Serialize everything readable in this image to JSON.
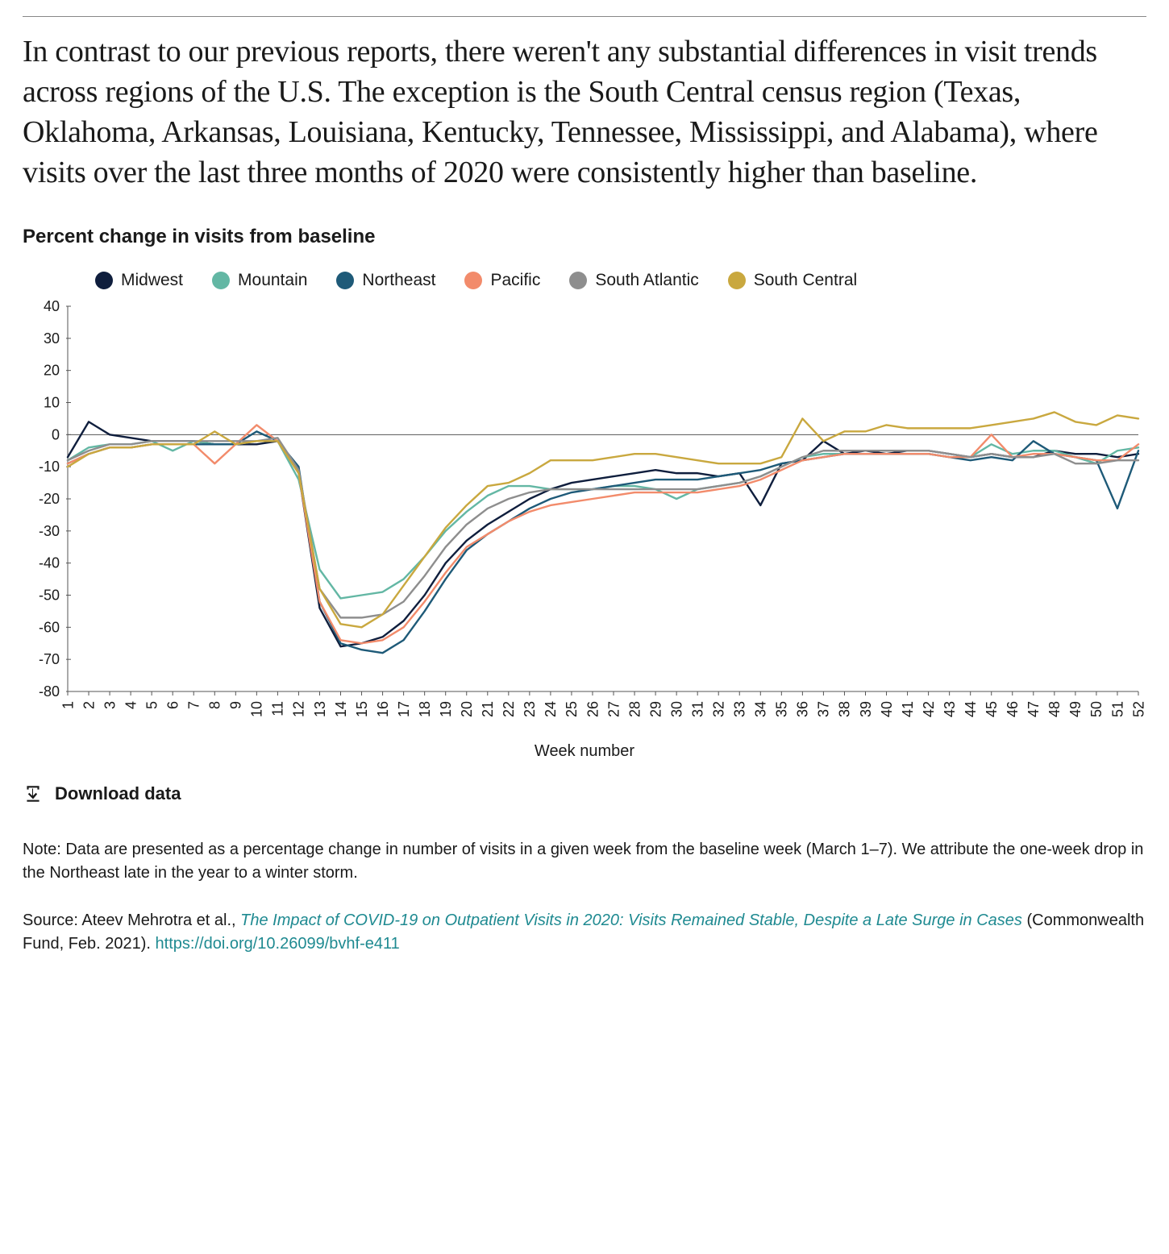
{
  "intro_text": "In contrast to our previous reports, there weren't any substantial differences in visit trends across regions of the U.S. The exception is the South Central census region (Texas, Oklahoma, Arkansas, Louisiana, Kentucky, Tennessee, Mississippi, and Alabama), where visits over the last three months of 2020 were consistently higher than baseline.",
  "chart": {
    "title": "Percent change in visits from baseline",
    "type": "line",
    "xlabel": "Week number",
    "x_values": [
      1,
      2,
      3,
      4,
      5,
      6,
      7,
      8,
      9,
      10,
      11,
      12,
      13,
      14,
      15,
      16,
      17,
      18,
      19,
      20,
      21,
      22,
      23,
      24,
      25,
      26,
      27,
      28,
      29,
      30,
      31,
      32,
      33,
      34,
      35,
      36,
      37,
      38,
      39,
      40,
      41,
      42,
      43,
      44,
      45,
      46,
      47,
      48,
      49,
      50,
      51,
      52
    ],
    "ylim": [
      -80,
      40
    ],
    "ytick_step": 10,
    "line_width": 2.4,
    "background_color": "#ffffff",
    "axis_color": "#555555",
    "tick_font_size": 18,
    "legend_font_size": 21,
    "series": [
      {
        "name": "Midwest",
        "color": "#0f1e3d",
        "values": [
          -7,
          4,
          0,
          -1,
          -2,
          -2,
          -2,
          -3,
          -3,
          -3,
          -2,
          -12,
          -54,
          -66,
          -65,
          -63,
          -58,
          -50,
          -40,
          -33,
          -28,
          -24,
          -20,
          -17,
          -15,
          -14,
          -13,
          -12,
          -11,
          -12,
          -12,
          -13,
          -12,
          -22,
          -9,
          -8,
          -2,
          -6,
          -5,
          -6,
          -5,
          -5,
          -6,
          -7,
          -6,
          -7,
          -7,
          -5,
          -6,
          -6,
          -7,
          -6
        ]
      },
      {
        "name": "Mountain",
        "color": "#63b7a4",
        "values": [
          -8,
          -4,
          -3,
          -3,
          -2,
          -5,
          -2,
          -3,
          -3,
          -2,
          -2,
          -14,
          -42,
          -51,
          -50,
          -49,
          -45,
          -38,
          -30,
          -24,
          -19,
          -16,
          -16,
          -17,
          -17,
          -17,
          -16,
          -16,
          -17,
          -20,
          -17,
          -16,
          -15,
          -13,
          -10,
          -7,
          -6,
          -6,
          -6,
          -6,
          -6,
          -6,
          -7,
          -7,
          -3,
          -6,
          -5,
          -5,
          -7,
          -9,
          -5,
          -4
        ]
      },
      {
        "name": "Northeast",
        "color": "#1e5a78",
        "values": [
          -9,
          -6,
          -4,
          -4,
          -3,
          -3,
          -3,
          -3,
          -3,
          1,
          -2,
          -10,
          -52,
          -65,
          -67,
          -68,
          -64,
          -55,
          -45,
          -36,
          -31,
          -27,
          -23,
          -20,
          -18,
          -17,
          -16,
          -15,
          -14,
          -14,
          -14,
          -13,
          -12,
          -11,
          -9,
          -8,
          -7,
          -6,
          -6,
          -6,
          -6,
          -6,
          -7,
          -8,
          -7,
          -8,
          -2,
          -6,
          -7,
          -8,
          -23,
          -5
        ]
      },
      {
        "name": "Pacific",
        "color": "#f28b6b",
        "values": [
          -9,
          -6,
          -4,
          -4,
          -3,
          -3,
          -3,
          -9,
          -3,
          3,
          -2,
          -12,
          -52,
          -64,
          -65,
          -64,
          -60,
          -52,
          -43,
          -35,
          -31,
          -27,
          -24,
          -22,
          -21,
          -20,
          -19,
          -18,
          -18,
          -18,
          -18,
          -17,
          -16,
          -14,
          -11,
          -8,
          -7,
          -6,
          -6,
          -6,
          -6,
          -6,
          -7,
          -7,
          0,
          -7,
          -6,
          -6,
          -7,
          -8,
          -8,
          -3
        ]
      },
      {
        "name": "South Atlantic",
        "color": "#8e8e8e",
        "values": [
          -8,
          -5,
          -3,
          -3,
          -2,
          -2,
          -2,
          -2,
          -2,
          -2,
          -1,
          -11,
          -48,
          -57,
          -57,
          -56,
          -52,
          -44,
          -35,
          -28,
          -23,
          -20,
          -18,
          -17,
          -17,
          -17,
          -17,
          -17,
          -17,
          -17,
          -17,
          -16,
          -15,
          -13,
          -10,
          -7,
          -5,
          -5,
          -5,
          -5,
          -5,
          -5,
          -6,
          -7,
          -6,
          -7,
          -7,
          -6,
          -9,
          -9,
          -8,
          -8
        ]
      },
      {
        "name": "South Central",
        "color": "#c9a83f",
        "values": [
          -10,
          -6,
          -4,
          -4,
          -3,
          -3,
          -3,
          1,
          -3,
          -2,
          -2,
          -12,
          -48,
          -59,
          -60,
          -56,
          -47,
          -38,
          -29,
          -22,
          -16,
          -15,
          -12,
          -8,
          -8,
          -8,
          -7,
          -6,
          -6,
          -7,
          -8,
          -9,
          -9,
          -9,
          -7,
          5,
          -2,
          1,
          1,
          3,
          2,
          2,
          2,
          2,
          3,
          4,
          5,
          7,
          4,
          3,
          6,
          5
        ]
      }
    ]
  },
  "download_label": "Download data",
  "note_text": "Note: Data are presented as a percentage change in number of visits in a given week from the baseline week (March 1–7). We attribute the one-week drop in the Northeast late in the year to a winter storm.",
  "source": {
    "prefix": "Source: Ateev Mehrotra et al., ",
    "citation_title": "The Impact of COVID-19 on Outpatient Visits in 2020: Visits Remained Stable, Despite a Late Surge in Cases",
    "suffix": " (Commonwealth Fund, Feb. 2021). ",
    "doi": "https://doi.org/10.26099/bvhf-e411"
  }
}
